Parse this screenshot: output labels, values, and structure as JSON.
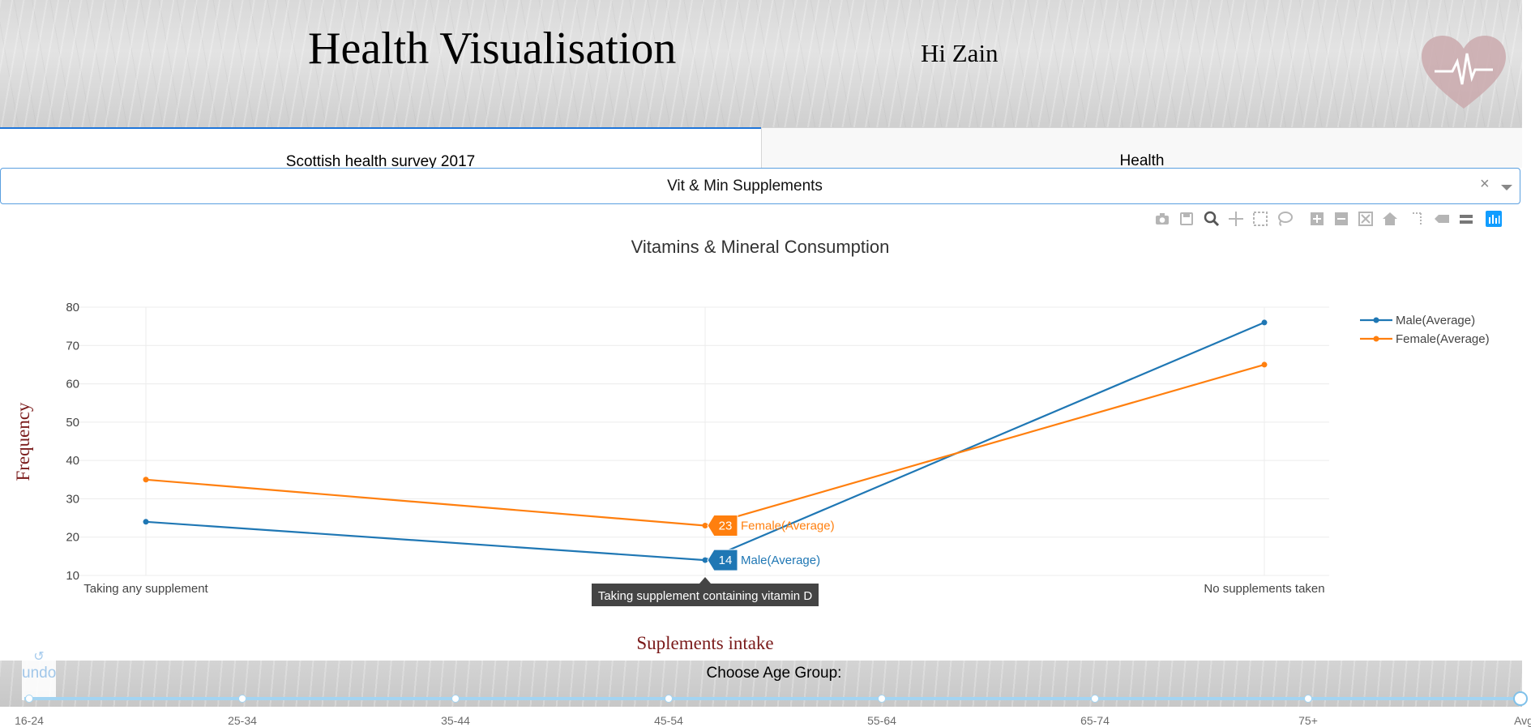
{
  "header": {
    "title": "Health Visualisation",
    "greeting": "Hi Zain",
    "logo_icon": "heart-pulse-icon"
  },
  "tabs": [
    {
      "label": "Scottish health survey 2017",
      "active": true
    },
    {
      "label": "Health",
      "active": false
    }
  ],
  "dropdown": {
    "value": "Vit & Min Supplements",
    "clear_symbol": "×"
  },
  "modebar": {
    "icons": [
      "camera-icon",
      "save-icon",
      "zoom-icon",
      "pan-icon",
      "box-select-icon",
      "lasso-select-icon",
      "zoom-in-icon",
      "zoom-out-icon",
      "autoscale-icon",
      "reset-axes-icon",
      "spike-lines-icon",
      "hover-closest-icon",
      "hover-compare-icon",
      "plotly-logo-icon"
    ]
  },
  "chart_data": {
    "type": "line",
    "title": "Vitamins & Mineral Consumption",
    "xlabel": "Suplements intake",
    "ylabel": "Frequency",
    "categories": [
      "Taking any supplement",
      "Taking supplement containing vitamin D",
      "No supplements taken"
    ],
    "ylim": [
      10,
      80
    ],
    "yticks": [
      10,
      20,
      30,
      40,
      50,
      60,
      70,
      80
    ],
    "grid": true,
    "legend_position": "top-right",
    "series": [
      {
        "name": "Male(Average)",
        "values": [
          24,
          14,
          76
        ],
        "color": "#1f77b4"
      },
      {
        "name": "Female(Average)",
        "values": [
          35,
          23,
          65
        ],
        "color": "#ff7f0e"
      }
    ],
    "hover": {
      "category": "Taking supplement containing vitamin D",
      "labels": [
        {
          "value": "23",
          "name": "Female(Average)"
        },
        {
          "value": "14",
          "name": "Male(Average)"
        }
      ]
    }
  },
  "axis_title_color": "#7a1a1a",
  "age_selector": {
    "label": "Choose Age Group:",
    "undo_label": "undo",
    "marks": [
      "16-24",
      "25-34",
      "35-44",
      "45-54",
      "55-64",
      "65-74",
      "75+",
      "Avg"
    ],
    "selected": "Avg"
  }
}
